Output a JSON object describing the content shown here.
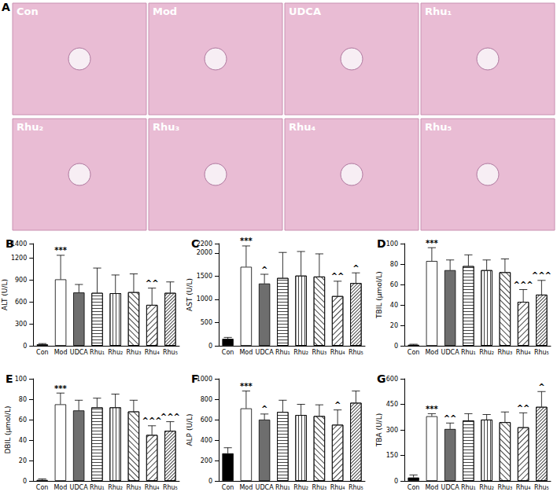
{
  "image_panel": {
    "title": "A",
    "images": [
      "Con",
      "Mod",
      "UDCA",
      "Rhu₁",
      "Rhu₂",
      "Rhu₃",
      "Rhu₄",
      "Rhu₅"
    ]
  },
  "chart_data": [
    {
      "type": "bar",
      "title": "B",
      "y_label": "ALT (U/L)",
      "categories": [
        "Con",
        "Mod",
        "UDCA",
        "Rhu₁",
        "Rhu₂",
        "Rhu₃",
        "Rhu₄",
        "Rhu₅"
      ],
      "values": [
        20,
        910,
        730,
        725,
        720,
        735,
        560,
        725
      ],
      "errors": [
        10,
        330,
        110,
        340,
        250,
        250,
        230,
        150
      ],
      "significance": [
        null,
        "***",
        null,
        null,
        null,
        null,
        "^^",
        null
      ],
      "colors": [
        "#000000",
        "#ffffff",
        "#6e6e6e",
        "#ffffff",
        "#ffffff",
        "#ffffff",
        "#ffffff",
        "#ffffff"
      ],
      "ylim": [
        0,
        1400
      ],
      "yticks": [
        0,
        300,
        600,
        900,
        1200
      ],
      "grid": false
    },
    {
      "type": "bar",
      "title": "C",
      "y_label": "AST (U/L)",
      "categories": [
        "Con",
        "Mod",
        "UDCA",
        "Rhu₁",
        "Rhu₂",
        "Rhu₃",
        "Rhu₄",
        "Rhu₅"
      ],
      "values": [
        150,
        1700,
        1340,
        1460,
        1510,
        1490,
        1070,
        1350
      ],
      "errors": [
        30,
        450,
        200,
        550,
        520,
        490,
        320,
        220
      ],
      "significance": [
        null,
        "***",
        "^",
        null,
        null,
        null,
        "^^",
        "^"
      ],
      "colors": [
        "#000000",
        "#ffffff",
        "#6e6e6e",
        "#ffffff",
        "#ffffff",
        "#ffffff",
        "#ffffff",
        "#ffffff"
      ],
      "ylim": [
        0,
        2200
      ],
      "yticks": [
        0,
        500,
        1000,
        1500,
        2000
      ],
      "grid": false
    },
    {
      "type": "bar",
      "title": "D",
      "y_label": "TBIL (μmol/L)",
      "categories": [
        "Con",
        "Mod",
        "UDCA",
        "Rhu₁",
        "Rhu₂",
        "Rhu₃",
        "Rhu₄",
        "Rhu₅"
      ],
      "values": [
        1,
        83,
        74,
        78,
        74,
        72,
        43,
        50
      ],
      "errors": [
        0.5,
        13,
        10,
        11,
        10,
        13,
        12,
        14
      ],
      "significance": [
        null,
        "***",
        null,
        null,
        null,
        null,
        "^^^",
        "^^^"
      ],
      "colors": [
        "#000000",
        "#ffffff",
        "#6e6e6e",
        "#ffffff",
        "#ffffff",
        "#ffffff",
        "#ffffff",
        "#ffffff"
      ],
      "ylim": [
        0,
        100
      ],
      "yticks": [
        0,
        20,
        40,
        60,
        80,
        100
      ],
      "grid": false
    },
    {
      "type": "bar",
      "title": "E",
      "y_label": "DBIL (μmol/L)",
      "categories": [
        "Con",
        "Mod",
        "UDCA",
        "Rhu₁",
        "Rhu₂",
        "Rhu₃",
        "Rhu₄",
        "Rhu₅"
      ],
      "values": [
        1,
        75,
        69,
        72,
        72,
        68,
        45,
        49
      ],
      "errors": [
        1,
        11,
        10,
        9,
        13,
        11,
        9,
        9
      ],
      "significance": [
        null,
        "***",
        null,
        null,
        null,
        null,
        "^^^",
        "^^^"
      ],
      "colors": [
        "#000000",
        "#ffffff",
        "#6e6e6e",
        "#ffffff",
        "#ffffff",
        "#ffffff",
        "#ffffff",
        "#ffffff"
      ],
      "ylim": [
        0,
        100
      ],
      "yticks": [
        0,
        20,
        40,
        60,
        80,
        100
      ],
      "grid": false
    },
    {
      "type": "bar",
      "title": "F",
      "y_label": "ALP (U/L)",
      "categories": [
        "Con",
        "Mod",
        "UDCA",
        "Rhu₁",
        "Rhu₂",
        "Rhu₃",
        "Rhu₄",
        "Rhu₅"
      ],
      "values": [
        270,
        710,
        600,
        675,
        645,
        635,
        550,
        765
      ],
      "errors": [
        55,
        170,
        55,
        115,
        105,
        110,
        145,
        115
      ],
      "significance": [
        null,
        "***",
        "^",
        null,
        null,
        null,
        "^",
        null
      ],
      "colors": [
        "#000000",
        "#ffffff",
        "#6e6e6e",
        "#ffffff",
        "#ffffff",
        "#ffffff",
        "#ffffff",
        "#ffffff"
      ],
      "ylim": [
        0,
        1000
      ],
      "yticks": [
        0,
        200,
        400,
        600,
        800,
        1000
      ],
      "grid": false
    },
    {
      "type": "bar",
      "title": "G",
      "y_label": "TBA (U/L)",
      "categories": [
        "Con",
        "Mod",
        "UDCA",
        "Rhu₁",
        "Rhu₂",
        "Rhu₃",
        "Rhu₄",
        "Rhu₅"
      ],
      "values": [
        20,
        380,
        305,
        355,
        360,
        345,
        315,
        435
      ],
      "errors": [
        15,
        15,
        35,
        40,
        30,
        60,
        85,
        90
      ],
      "significance": [
        null,
        "***",
        "^^",
        null,
        null,
        null,
        "^^",
        "^"
      ],
      "colors": [
        "#000000",
        "#ffffff",
        "#6e6e6e",
        "#ffffff",
        "#ffffff",
        "#ffffff",
        "#ffffff",
        "#ffffff"
      ],
      "ylim": [
        0,
        600
      ],
      "yticks": [
        0,
        150,
        300,
        450,
        600
      ],
      "grid": false
    }
  ]
}
